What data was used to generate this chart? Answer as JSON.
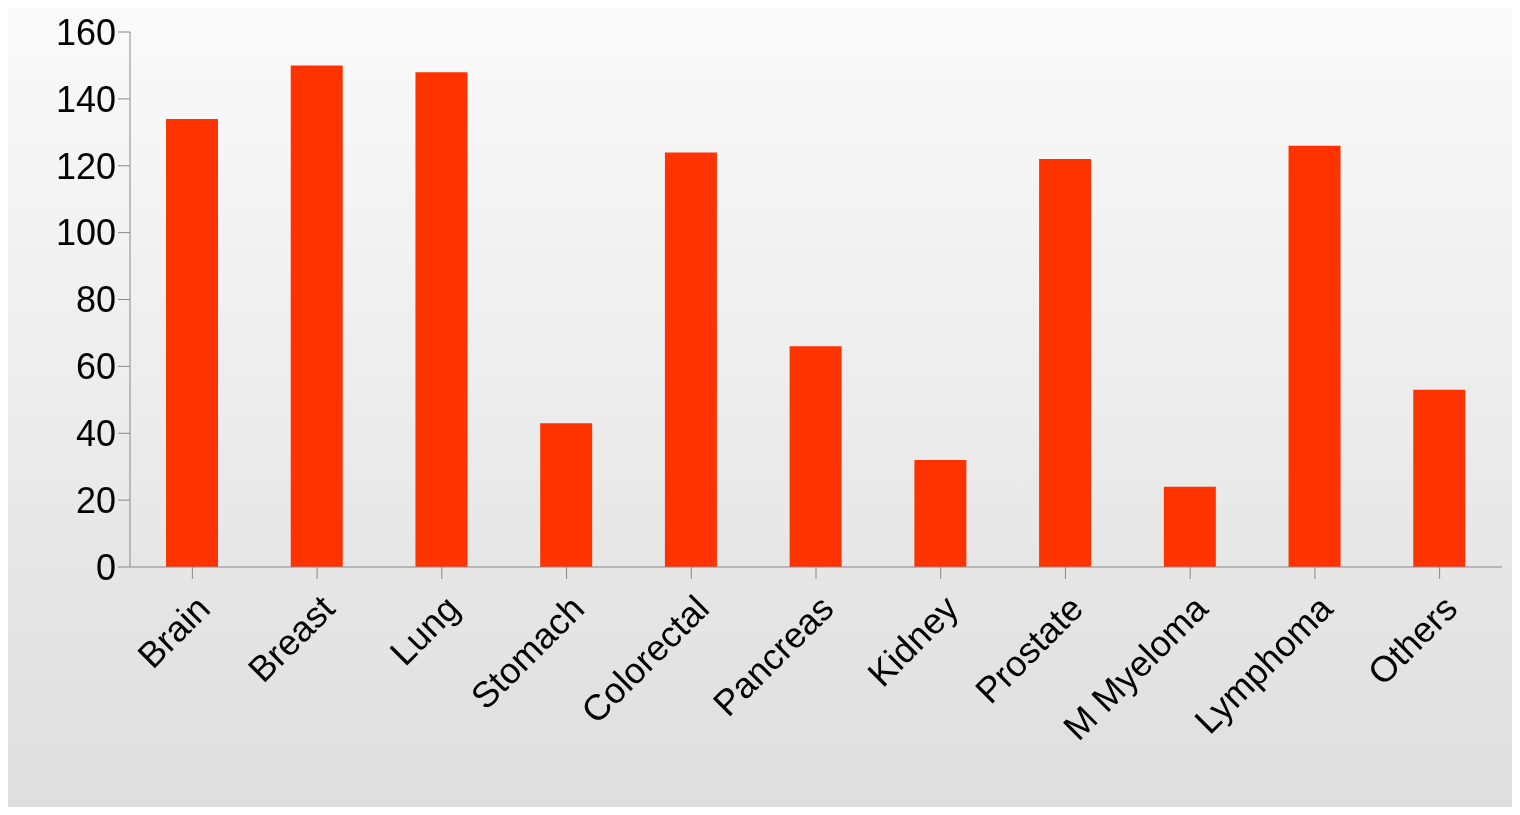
{
  "chart_data": {
    "type": "bar",
    "categories": [
      "Brain",
      "Breast",
      "Lung",
      "Stomach",
      "Colorectal",
      "Pancreas",
      "Kidney",
      "Prostate",
      "M Myeloma",
      "Lymphoma",
      "Others"
    ],
    "values": [
      134,
      150,
      148,
      43,
      124,
      66,
      32,
      122,
      24,
      126,
      53
    ],
    "color": "#ff3300",
    "ylim": [
      0,
      160
    ],
    "yticks": [
      0,
      20,
      40,
      60,
      80,
      100,
      120,
      140,
      160
    ],
    "grid": false,
    "legend": false
  }
}
